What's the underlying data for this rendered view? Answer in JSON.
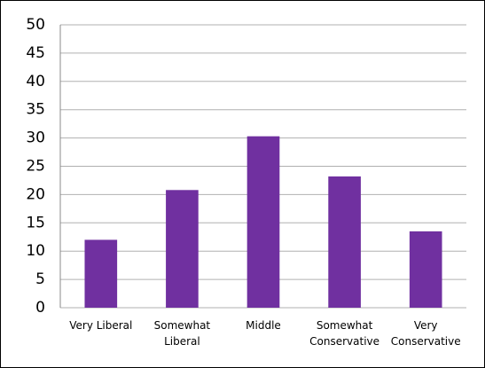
{
  "chart_data": {
    "type": "bar",
    "categories": [
      "Very Liberal",
      "Somewhat Liberal",
      "Middle",
      "Somewhat Conservative",
      "Very Conservative"
    ],
    "values": [
      12,
      20.8,
      30.3,
      23.2,
      13.5
    ],
    "color": "#7030a0",
    "ylim": [
      0,
      50
    ],
    "yticks": [
      0,
      5,
      10,
      15,
      20,
      25,
      30,
      35,
      40,
      45,
      50
    ],
    "grid": true
  }
}
